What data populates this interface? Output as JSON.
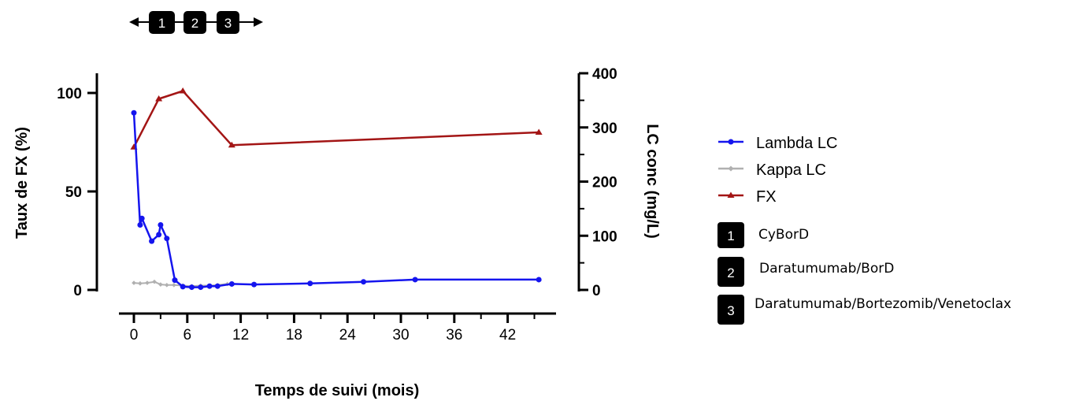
{
  "chart_data": {
    "type": "line",
    "xlabel": "Temps de suivi (mois)",
    "ylabel_left": "Taux de FX (%)",
    "ylabel_right": "LC conc (mg/L)",
    "xlim": [
      0,
      45
    ],
    "ylim_left": [
      0,
      110
    ],
    "ylim_right": [
      0,
      400
    ],
    "xticks": [
      "0",
      "6",
      "12",
      "18",
      "24",
      "30",
      "36",
      "42"
    ],
    "xtick_values": [
      0,
      6,
      12,
      18,
      24,
      30,
      36,
      42
    ],
    "yticks_left": [
      "0",
      "50",
      "100"
    ],
    "ytick_values_left": [
      0,
      50,
      100
    ],
    "yticks_right": [
      "0",
      "100",
      "200",
      "300",
      "400"
    ],
    "ytick_values_right": [
      0,
      100,
      200,
      300,
      400
    ],
    "grid": false,
    "legend_position": "right",
    "series": [
      {
        "name": "Lambda LC",
        "axis": "right",
        "color": "#1515ee",
        "marker": "circle",
        "points": [
          [
            0,
            327
          ],
          [
            0.7,
            120
          ],
          [
            0.9,
            132
          ],
          [
            2,
            90
          ],
          [
            2.8,
            102
          ],
          [
            3,
            120
          ],
          [
            3.7,
            95
          ],
          [
            4.6,
            18
          ],
          [
            5.5,
            6
          ],
          [
            6.5,
            5
          ],
          [
            7.5,
            5
          ],
          [
            8.5,
            7
          ],
          [
            9.4,
            7
          ],
          [
            11,
            11
          ],
          [
            13.5,
            10
          ],
          [
            19.8,
            12
          ],
          [
            25.8,
            15
          ],
          [
            31.6,
            19
          ],
          [
            45.5,
            19
          ]
        ]
      },
      {
        "name": "Kappa LC",
        "axis": "right",
        "color": "#b0b0b0",
        "marker": "diamond",
        "points": [
          [
            0,
            13
          ],
          [
            0.7,
            12
          ],
          [
            1.5,
            13
          ],
          [
            2.3,
            15
          ],
          [
            3,
            10
          ],
          [
            3.7,
            9
          ],
          [
            4.5,
            9
          ],
          [
            5.5,
            8
          ],
          [
            6.5,
            7
          ],
          [
            7.5,
            8
          ],
          [
            8.5,
            8
          ],
          [
            9.4,
            9
          ],
          [
            10.5,
            11
          ]
        ]
      },
      {
        "name": "FX",
        "axis": "left",
        "color": "#a31515",
        "marker": "triangle",
        "points": [
          [
            0,
            72.5
          ],
          [
            2.8,
            97
          ],
          [
            5.5,
            101
          ],
          [
            11,
            73.5
          ],
          [
            45.5,
            80
          ]
        ]
      }
    ],
    "treatment_periods": [
      {
        "number": "1",
        "name": "CyBorD"
      },
      {
        "number": "2",
        "name": "Daratumumab/BorD"
      },
      {
        "number": "3",
        "name": "Daratumumab/Bortezomib/Venetoclax"
      }
    ]
  }
}
